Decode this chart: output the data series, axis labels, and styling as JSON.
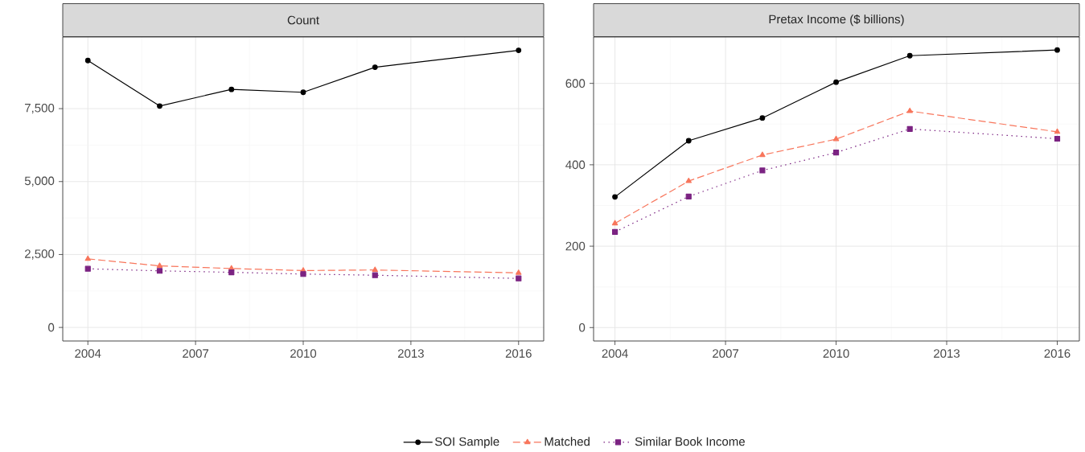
{
  "chart_data": [
    {
      "type": "line",
      "title": "Count",
      "x": [
        2004,
        2006,
        2008,
        2010,
        2012,
        2016
      ],
      "xlim": [
        2003.3,
        2016.7
      ],
      "xticks": [
        2004,
        2007,
        2010,
        2013,
        2016
      ],
      "ylim": [
        -465,
        9956
      ],
      "yticks": [
        0,
        {
          "value": 2500,
          "label": "2,500"
        },
        {
          "value": 5000,
          "label": "5,000"
        },
        {
          "value": 7500,
          "label": "7,500"
        }
      ],
      "grid": true,
      "legend": "bottom",
      "series": [
        {
          "name": "SOI Sample",
          "color": "#000000",
          "marker": "circle",
          "line_style": "solid",
          "values": [
            9150,
            7590,
            8160,
            8060,
            8920,
            9500
          ]
        },
        {
          "name": "Matched",
          "color": "#f8765c",
          "marker": "triangle",
          "line_style": "dashed",
          "values": [
            2350,
            2110,
            2020,
            1950,
            1970,
            1870
          ]
        },
        {
          "name": "Similar Book Income",
          "color": "#7b2382",
          "marker": "square",
          "line_style": "dotted",
          "values": [
            2010,
            1940,
            1890,
            1830,
            1790,
            1680
          ]
        }
      ]
    },
    {
      "type": "line",
      "title": "Pretax Income ($ billions)",
      "x": [
        2004,
        2006,
        2008,
        2010,
        2012,
        2016
      ],
      "xlim": [
        2003.42,
        2016.6
      ],
      "xticks": [
        2004,
        2007,
        2010,
        2013,
        2016
      ],
      "ylim": [
        -33,
        714
      ],
      "yticks": [
        0,
        200,
        400,
        600
      ],
      "grid": true,
      "series": [
        {
          "color": "#000000",
          "marker": "circle",
          "line_style": "solid",
          "values": [
            321,
            459,
            515,
            603,
            668,
            682
          ]
        },
        {
          "color": "#f8765c",
          "marker": "triangle",
          "line_style": "dashed",
          "values": [
            256,
            360,
            424,
            463,
            532,
            481
          ]
        },
        {
          "color": "#7b2382",
          "marker": "square",
          "line_style": "dotted",
          "values": [
            235,
            322,
            386,
            430,
            488,
            464
          ]
        }
      ]
    }
  ]
}
